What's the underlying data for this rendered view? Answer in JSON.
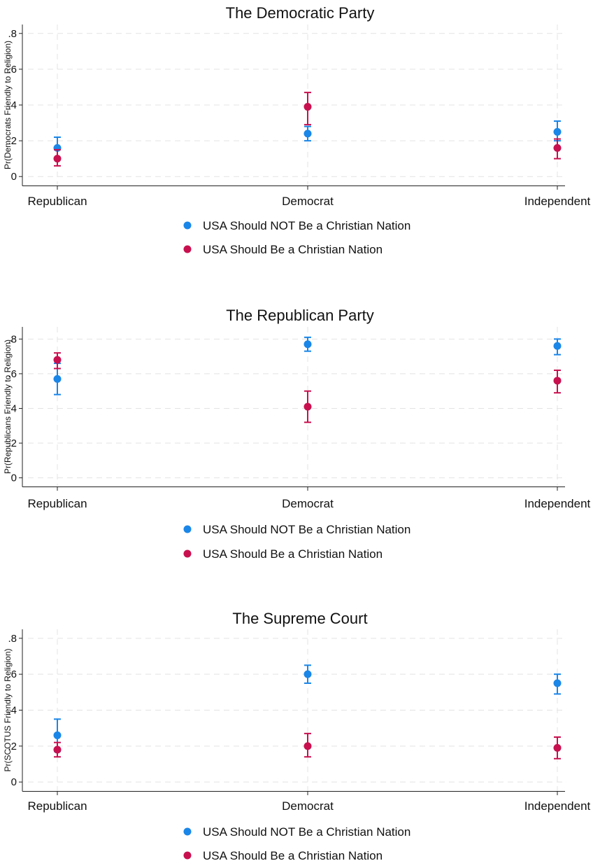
{
  "legend": {
    "items": [
      {
        "label": "USA Should NOT Be a Christian Nation",
        "color": "#1a86e8"
      },
      {
        "label": "USA Should Be a Christian Nation",
        "color": "#c8104f"
      }
    ]
  },
  "chart_data": [
    {
      "type": "scatter",
      "error_bars": true,
      "title": "The Democratic Party",
      "ylabel": "Pr(Democrats Friendly to Religion)",
      "xlabel": "",
      "categories": [
        "Republican",
        "Democrat",
        "Independent"
      ],
      "yticks": [
        0,
        0.2,
        0.4,
        0.6,
        0.8
      ],
      "ytick_labels": [
        "0",
        ".2",
        ".4",
        ".6",
        ".8"
      ],
      "ylim": [
        -0.05,
        0.85
      ],
      "grid": true,
      "legend_position": "bottom",
      "series": [
        {
          "name": "USA Should NOT Be a Christian Nation",
          "color": "#1a86e8",
          "values": [
            0.16,
            0.24,
            0.25
          ],
          "lower": [
            0.1,
            0.2,
            0.2
          ],
          "upper": [
            0.22,
            0.28,
            0.31
          ]
        },
        {
          "name": "USA Should Be a Christian Nation",
          "color": "#c8104f",
          "values": [
            0.1,
            0.39,
            0.16
          ],
          "lower": [
            0.06,
            0.29,
            0.1
          ],
          "upper": [
            0.15,
            0.47,
            0.21
          ]
        }
      ]
    },
    {
      "type": "scatter",
      "error_bars": true,
      "title": "The Republican Party",
      "ylabel": "Pr(Republicans Friendly to Religion)",
      "xlabel": "",
      "categories": [
        "Republican",
        "Democrat",
        "Independent"
      ],
      "yticks": [
        0,
        0.2,
        0.4,
        0.6,
        0.8
      ],
      "ytick_labels": [
        "0",
        ".2",
        ".4",
        ".6",
        ".8"
      ],
      "ylim": [
        -0.05,
        0.87
      ],
      "grid": true,
      "legend_position": "bottom",
      "series": [
        {
          "name": "USA Should NOT Be a Christian Nation",
          "color": "#1a86e8",
          "values": [
            0.57,
            0.77,
            0.76
          ],
          "lower": [
            0.48,
            0.73,
            0.71
          ],
          "upper": [
            0.66,
            0.81,
            0.8
          ]
        },
        {
          "name": "USA Should Be a Christian Nation",
          "color": "#c8104f",
          "values": [
            0.68,
            0.41,
            0.56
          ],
          "lower": [
            0.63,
            0.32,
            0.49
          ],
          "upper": [
            0.72,
            0.5,
            0.62
          ]
        }
      ]
    },
    {
      "type": "scatter",
      "error_bars": true,
      "title": "The Supreme Court",
      "ylabel": "Pr(SCOTUS Friendly to Religion)",
      "xlabel": "",
      "categories": [
        "Republican",
        "Democrat",
        "Independent"
      ],
      "yticks": [
        0,
        0.2,
        0.4,
        0.6,
        0.8
      ],
      "ytick_labels": [
        "0",
        ".2",
        ".4",
        ".6",
        ".8"
      ],
      "ylim": [
        -0.05,
        0.85
      ],
      "grid": true,
      "legend_position": "bottom",
      "series": [
        {
          "name": "USA Should NOT Be a Christian Nation",
          "color": "#1a86e8",
          "values": [
            0.26,
            0.6,
            0.55
          ],
          "lower": [
            0.17,
            0.55,
            0.49
          ],
          "upper": [
            0.35,
            0.65,
            0.6
          ]
        },
        {
          "name": "USA Should Be a Christian Nation",
          "color": "#c8104f",
          "values": [
            0.18,
            0.2,
            0.19
          ],
          "lower": [
            0.14,
            0.14,
            0.13
          ],
          "upper": [
            0.22,
            0.27,
            0.25
          ]
        }
      ]
    }
  ]
}
